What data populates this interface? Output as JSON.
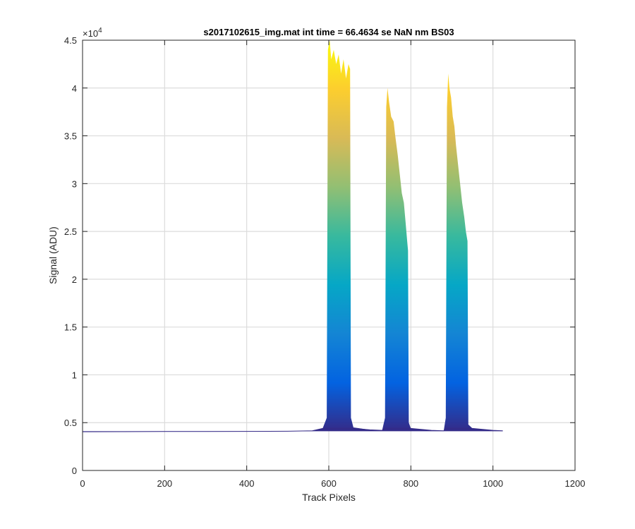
{
  "chart_data": {
    "type": "area",
    "title": "s2017102615_img.mat int time = 66.4634 se  NaN nm BS03",
    "xlabel": "Track Pixels",
    "ylabel": "Signal (ADU)",
    "exponent_label": "×10",
    "exponent_power": "4",
    "xlim": [
      0,
      1200
    ],
    "ylim": [
      0,
      45000
    ],
    "xticks": [
      0,
      200,
      400,
      600,
      800,
      1000,
      1200
    ],
    "xtick_labels": [
      "0",
      "200",
      "400",
      "600",
      "800",
      "1000",
      "1200"
    ],
    "yticks": [
      0,
      5000,
      10000,
      15000,
      20000,
      25000,
      30000,
      35000,
      40000,
      45000
    ],
    "ytick_labels": [
      "0",
      "0.5",
      "1",
      "1.5",
      "2",
      "2.5",
      "3",
      "3.5",
      "4",
      "4.5"
    ],
    "grid": true,
    "colormap": [
      "#352a87",
      "#0363e1",
      "#1485d4",
      "#06a7c6",
      "#38b99e",
      "#92bf73",
      "#d9ba56",
      "#fcce2e",
      "#f9fb0e"
    ],
    "baseline": 4100,
    "series": [
      {
        "values": [
          [
            0,
            4050
          ],
          [
            100,
            4060
          ],
          [
            200,
            4070
          ],
          [
            300,
            4080
          ],
          [
            400,
            4090
          ],
          [
            500,
            4100
          ],
          [
            560,
            4150
          ],
          [
            585,
            4400
          ],
          [
            595,
            5500
          ],
          [
            598,
            44000
          ],
          [
            602,
            45000
          ],
          [
            606,
            43000
          ],
          [
            612,
            44000
          ],
          [
            618,
            42500
          ],
          [
            624,
            43500
          ],
          [
            630,
            41500
          ],
          [
            636,
            43000
          ],
          [
            642,
            41000
          ],
          [
            648,
            42500
          ],
          [
            652,
            42000
          ],
          [
            654,
            5500
          ],
          [
            660,
            4500
          ],
          [
            700,
            4250
          ],
          [
            730,
            4200
          ],
          [
            737,
            5500
          ],
          [
            740,
            38000
          ],
          [
            743,
            40000
          ],
          [
            747,
            38500
          ],
          [
            752,
            37000
          ],
          [
            758,
            36500
          ],
          [
            762,
            35000
          ],
          [
            768,
            33000
          ],
          [
            773,
            31000
          ],
          [
            778,
            29000
          ],
          [
            783,
            28000
          ],
          [
            787,
            26000
          ],
          [
            791,
            24000
          ],
          [
            793,
            23000
          ],
          [
            795,
            5000
          ],
          [
            800,
            4400
          ],
          [
            850,
            4200
          ],
          [
            880,
            4150
          ],
          [
            885,
            5500
          ],
          [
            888,
            38000
          ],
          [
            891,
            41500
          ],
          [
            894,
            40000
          ],
          [
            898,
            39000
          ],
          [
            902,
            37000
          ],
          [
            906,
            36000
          ],
          [
            910,
            34000
          ],
          [
            915,
            32000
          ],
          [
            920,
            30000
          ],
          [
            925,
            28000
          ],
          [
            930,
            26500
          ],
          [
            934,
            25000
          ],
          [
            938,
            24000
          ],
          [
            940,
            4800
          ],
          [
            950,
            4400
          ],
          [
            1000,
            4200
          ],
          [
            1024,
            4150
          ]
        ]
      }
    ]
  }
}
